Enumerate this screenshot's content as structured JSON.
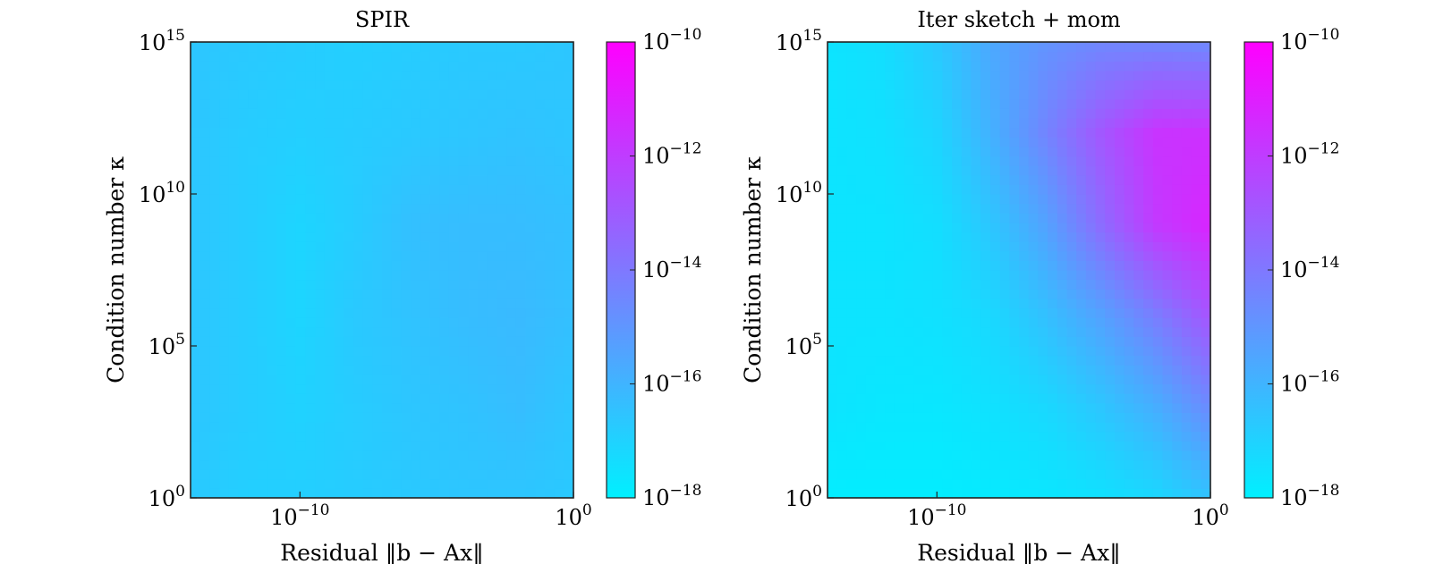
{
  "chart_data": [
    {
      "type": "heatmap",
      "subtype": "filled-contour",
      "title": "SPIR",
      "xlabel": "Residual ‖b − Ax‖",
      "ylabel": "Condition number κ",
      "x_scale": "log",
      "y_scale": "log",
      "xlim": [
        "1e-14",
        "1e0"
      ],
      "ylim": [
        "1e0",
        "1e15"
      ],
      "x_ticks": [
        {
          "base": "10",
          "exp": "−10",
          "value": 1e-10
        },
        {
          "base": "10",
          "exp": "0",
          "value": 1
        }
      ],
      "y_ticks": [
        {
          "base": "10",
          "exp": "0",
          "value": 1
        },
        {
          "base": "10",
          "exp": "5",
          "value": 100000.0
        },
        {
          "base": "10",
          "exp": "10",
          "value": 10000000000.0
        },
        {
          "base": "10",
          "exp": "15",
          "value": 1000000000000000.0
        }
      ],
      "colorbar": {
        "scale": "log",
        "range": [
          "1e-18",
          "1e-10"
        ],
        "colors": [
          "#00f0ff",
          "#ff00ff"
        ],
        "ticks": [
          {
            "base": "10",
            "exp": "−10",
            "value": 1e-10
          },
          {
            "base": "10",
            "exp": "−12",
            "value": 1e-12
          },
          {
            "base": "10",
            "exp": "−14",
            "value": 1e-14
          },
          {
            "base": "10",
            "exp": "−16",
            "value": 1e-16
          },
          {
            "base": "10",
            "exp": "−18",
            "value": 1e-18
          }
        ]
      },
      "x_log10": [
        -14,
        -12,
        -10,
        -8,
        -6,
        -4,
        -2,
        0
      ],
      "y_log10": [
        0,
        3,
        6,
        9,
        12,
        15
      ],
      "z_log10": [
        [
          -16.7,
          -16.9,
          -16.9,
          -16.8,
          -16.7,
          -16.6,
          -16.6,
          -16.7
        ],
        [
          -16.6,
          -16.8,
          -17.0,
          -16.8,
          -16.6,
          -16.5,
          -16.3,
          -16.6
        ],
        [
          -16.6,
          -16.8,
          -17.1,
          -16.7,
          -16.5,
          -16.3,
          -16.2,
          -16.4
        ],
        [
          -16.6,
          -16.8,
          -17.1,
          -16.8,
          -16.4,
          -16.3,
          -16.3,
          -16.4
        ],
        [
          -16.6,
          -16.8,
          -16.9,
          -16.8,
          -16.7,
          -16.6,
          -16.5,
          -16.6
        ],
        [
          -16.6,
          -16.7,
          -16.8,
          -16.9,
          -16.8,
          -16.7,
          -16.7,
          -16.6
        ]
      ]
    },
    {
      "type": "heatmap",
      "subtype": "filled-contour",
      "title": "Iter sketch + mom",
      "xlabel": "Residual ‖b − Ax‖",
      "ylabel": "Condition number κ",
      "x_scale": "log",
      "y_scale": "log",
      "xlim": [
        "1e-14",
        "1e0"
      ],
      "ylim": [
        "1e0",
        "1e15"
      ],
      "x_ticks": [
        {
          "base": "10",
          "exp": "−10",
          "value": 1e-10
        },
        {
          "base": "10",
          "exp": "0",
          "value": 1
        }
      ],
      "y_ticks": [
        {
          "base": "10",
          "exp": "0",
          "value": 1
        },
        {
          "base": "10",
          "exp": "5",
          "value": 100000.0
        },
        {
          "base": "10",
          "exp": "10",
          "value": 10000000000.0
        },
        {
          "base": "10",
          "exp": "15",
          "value": 1000000000000000.0
        }
      ],
      "colorbar": {
        "scale": "log",
        "range": [
          "1e-18",
          "1e-10"
        ],
        "colors": [
          "#00f0ff",
          "#ff00ff"
        ],
        "ticks": [
          {
            "base": "10",
            "exp": "−10",
            "value": 1e-10
          },
          {
            "base": "10",
            "exp": "−12",
            "value": 1e-12
          },
          {
            "base": "10",
            "exp": "−14",
            "value": 1e-14
          },
          {
            "base": "10",
            "exp": "−16",
            "value": 1e-16
          },
          {
            "base": "10",
            "exp": "−18",
            "value": 1e-18
          }
        ]
      },
      "x_log10": [
        -14,
        -12,
        -10,
        -8,
        -6,
        -4,
        -2,
        0
      ],
      "y_log10": [
        0,
        3,
        6,
        9,
        12,
        15
      ],
      "z_log10": [
        [
          -17.9,
          -17.9,
          -17.9,
          -17.8,
          -17.7,
          -17.5,
          -17.2,
          -16.5
        ],
        [
          -17.6,
          -17.7,
          -17.7,
          -17.5,
          -17.2,
          -16.6,
          -15.8,
          -14.6
        ],
        [
          -17.6,
          -17.6,
          -17.5,
          -17.2,
          -16.4,
          -15.4,
          -14.2,
          -12.8
        ],
        [
          -17.6,
          -17.6,
          -17.4,
          -16.6,
          -15.4,
          -13.6,
          -11.9,
          -11.2
        ],
        [
          -17.6,
          -17.5,
          -17.1,
          -15.9,
          -14.4,
          -12.9,
          -11.7,
          -11.6
        ],
        [
          -17.6,
          -17.4,
          -16.7,
          -15.6,
          -14.9,
          -14.5,
          -14.5,
          -14.6
        ]
      ]
    }
  ]
}
